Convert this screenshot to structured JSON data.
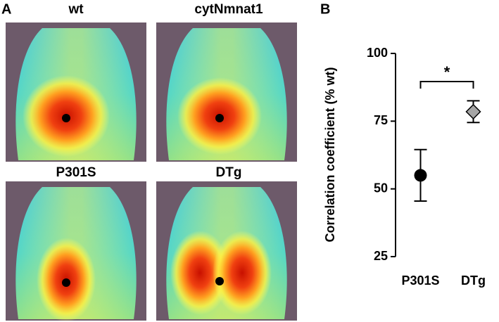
{
  "panel_a": {
    "label": "A",
    "images": [
      "wt",
      "cytNmnat1",
      "P301S",
      "DTg"
    ]
  },
  "chart_data": {
    "type": "errorbar",
    "panel_label": "B",
    "ylabel": "Correlation coefficient (% wt)",
    "categories": [
      "P301S",
      "DTg"
    ],
    "values": [
      55,
      78.5
    ],
    "errors": [
      9.5,
      4
    ],
    "colors": [
      "#000000",
      "#a6a6a6"
    ],
    "markers": [
      "circle",
      "diamond"
    ],
    "annotation": "*",
    "ylim": [
      25,
      100
    ],
    "yticks": [
      25,
      50,
      75,
      100
    ]
  }
}
